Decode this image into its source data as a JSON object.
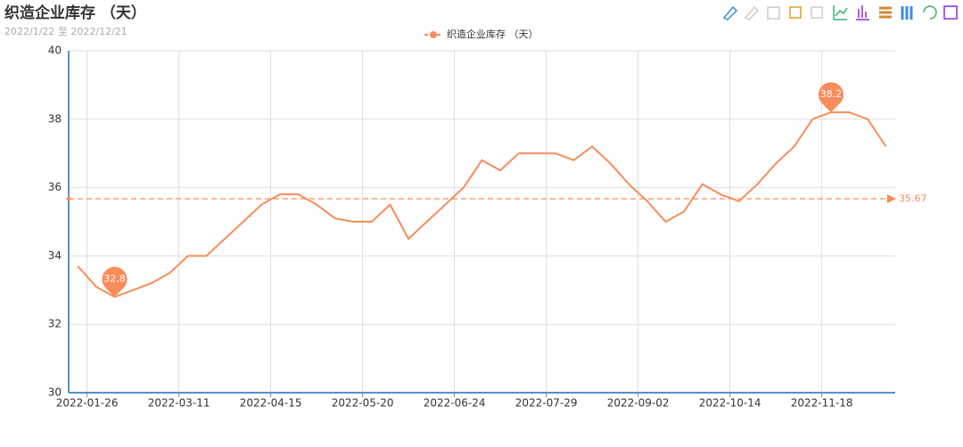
{
  "chart_data": {
    "type": "line",
    "title": "织造企业库存 （天）",
    "subtitle": "2022/1/22 至 2022/12/21",
    "categories": [
      "2022-01-26",
      null,
      null,
      null,
      null,
      "2022-03-11",
      null,
      null,
      null,
      null,
      "2022-04-15",
      null,
      null,
      null,
      null,
      "2022-05-20",
      null,
      null,
      null,
      null,
      "2022-06-24",
      null,
      null,
      null,
      null,
      "2022-07-29",
      null,
      null,
      null,
      null,
      "2022-09-02",
      null,
      null,
      null,
      null,
      "2022-10-14",
      null,
      null,
      null,
      null,
      "2022-11-18",
      null,
      null,
      null,
      null
    ],
    "series": [
      {
        "name": "织造企业库存 （天）",
        "color": "#f98c5a",
        "values": [
          33.7,
          33.1,
          32.8,
          33.0,
          33.2,
          33.5,
          34.0,
          34.0,
          34.5,
          35.0,
          35.5,
          35.8,
          35.8,
          35.5,
          35.1,
          35.0,
          35.0,
          35.5,
          34.5,
          35.0,
          35.5,
          36.0,
          36.8,
          36.5,
          37.0,
          37.0,
          37.0,
          36.8,
          37.2,
          36.7,
          36.1,
          35.6,
          35.0,
          35.3,
          36.1,
          35.8,
          35.6,
          36.1,
          36.7,
          37.2,
          38.0,
          38.2,
          38.2,
          38.0,
          37.2
        ]
      }
    ],
    "mark_points": [
      {
        "index": 41,
        "value": 38.2
      },
      {
        "index": 2,
        "value": 32.8
      }
    ],
    "mark_line": {
      "value": 35.67
    },
    "ylim": [
      30,
      40
    ],
    "yticks": [
      30,
      32,
      34,
      36,
      38,
      40
    ],
    "grid": true
  }
}
